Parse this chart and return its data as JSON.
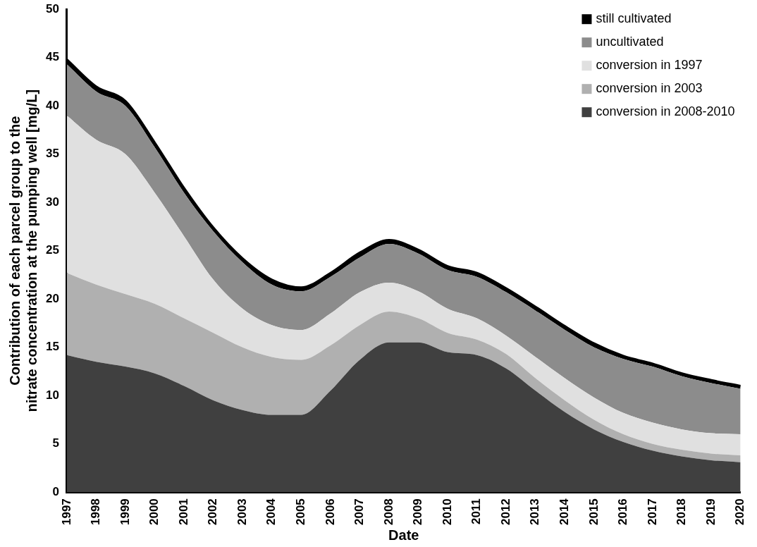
{
  "chart_data": {
    "type": "area",
    "stacked": true,
    "xlabel": "Date",
    "ylabel": "Contribution of each parcel group to the nitrate concentration at the pumping well [mg/L]",
    "categories": [
      "1997",
      "1998",
      "1999",
      "2000",
      "2001",
      "2002",
      "2003",
      "2004",
      "2005",
      "2006",
      "2007",
      "2008",
      "2009",
      "2010",
      "2011",
      "2012",
      "2013",
      "2014",
      "2015",
      "2016",
      "2017",
      "2018",
      "2019",
      "2020"
    ],
    "series": [
      {
        "name": "conversion in 2008-2010",
        "color": "#404040",
        "values": [
          14.2,
          13.5,
          13,
          12.3,
          11,
          9.5,
          8.5,
          8,
          8,
          10.5,
          13.7,
          15.5,
          15.5,
          14.5,
          14.2,
          12.8,
          10.5,
          8.3,
          6.5,
          5.2,
          4.3,
          3.7,
          3.3,
          3.1
        ]
      },
      {
        "name": "conversion in 2003",
        "color": "#b0b0b0",
        "values": [
          8.5,
          8,
          7.5,
          7.2,
          7,
          7,
          6.5,
          6,
          5.7,
          4.7,
          3.6,
          3.2,
          2.5,
          2,
          1.6,
          1.5,
          1.3,
          1.2,
          1,
          0.8,
          0.7,
          0.7,
          0.7,
          0.7
        ]
      },
      {
        "name": "conversion in 1997",
        "color": "#e0e0e0",
        "values": [
          16.3,
          15,
          14.5,
          11.5,
          8.5,
          5.5,
          4,
          3.3,
          3.1,
          3.3,
          3.4,
          3,
          2.8,
          2.5,
          2.2,
          1.9,
          2.2,
          2.3,
          2.3,
          2.2,
          2.2,
          2.1,
          2.1,
          2.2
        ]
      },
      {
        "name": "uncultivated",
        "color": "#8c8c8c",
        "values": [
          5.3,
          5,
          5,
          4.7,
          4.5,
          5,
          4.8,
          4.2,
          4,
          3.8,
          3.6,
          4,
          3.9,
          4,
          4.3,
          4.5,
          4.8,
          5,
          5.2,
          5.6,
          5.8,
          5.5,
          5.2,
          4.7
        ]
      },
      {
        "name": "still cultivated",
        "color": "#000000",
        "values": [
          0.5,
          0.5,
          0.5,
          0.5,
          0.5,
          0.4,
          0.4,
          0.5,
          0.4,
          0.4,
          0.5,
          0.4,
          0.4,
          0.4,
          0.4,
          0.4,
          0.4,
          0.4,
          0.4,
          0.3,
          0.3,
          0.3,
          0.3,
          0.3
        ]
      }
    ],
    "ylim": [
      0,
      50
    ],
    "yticks": [
      0,
      5,
      10,
      15,
      20,
      25,
      30,
      35,
      40,
      45,
      50
    ],
    "grid": false,
    "legend": "top right"
  }
}
